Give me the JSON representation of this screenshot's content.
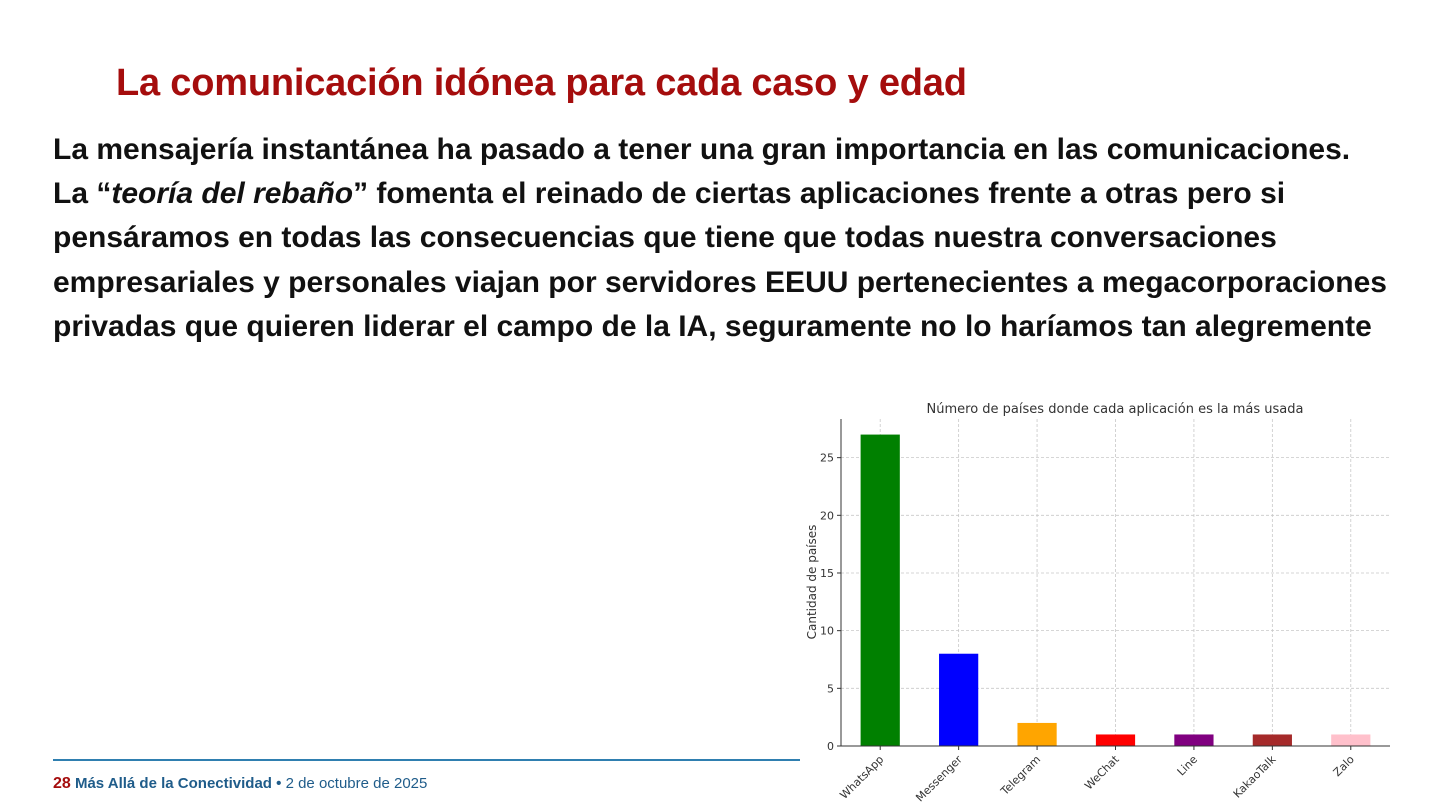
{
  "slide": {
    "title": "La comunicación idónea para cada caso y edad",
    "paragraph1": "La mensajería instantánea ha pasado a tener una gran importancia en las comunicaciones.",
    "paragraph2_prefix": "La “",
    "paragraph2_emphasis": "teoría del rebaño",
    "paragraph2_rest": "” fomenta el reinado de ciertas aplicaciones frente a otras pero si pensáramos en todas las consecuencias que tiene que todas nuestra conversaciones empresariales y personales viajan por servidores EEUU pertenecientes a megacorporaciones privadas que quieren liderar el campo de la IA, seguramente no lo haríamos tan alegremente"
  },
  "footer": {
    "page_number": "28",
    "brand": "Más Allá de la Conectividad",
    "separator": "•",
    "date": "2 de octubre de 2025"
  },
  "chart_data": {
    "type": "bar",
    "title": "Número de países donde cada aplicación es la más usada",
    "xlabel": "",
    "ylabel": "Cantidad de países",
    "categories": [
      "WhatsApp",
      "Messenger",
      "Telegram",
      "WeChat",
      "Line",
      "KakaoTalk",
      "Zalo"
    ],
    "values": [
      27,
      8,
      2,
      1,
      1,
      1,
      1
    ],
    "colors": [
      "#008000",
      "#0000ff",
      "#ffa500",
      "#ff0000",
      "#800080",
      "#a52a2a",
      "#ffc0cb"
    ],
    "yticks": [
      0,
      5,
      10,
      15,
      20,
      25
    ],
    "ylim": [
      0,
      28.35
    ],
    "grid": true,
    "legend": "none"
  }
}
